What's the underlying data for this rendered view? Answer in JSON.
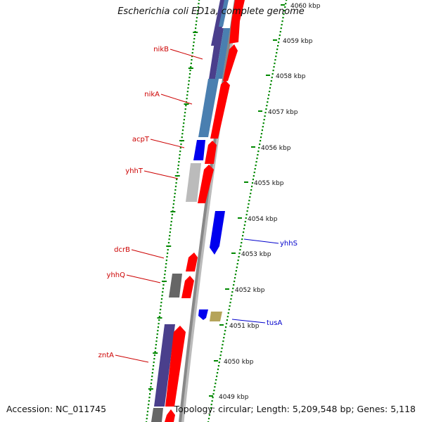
{
  "title": "Escherichia coli ED1a, complete genome",
  "accession": "Accession: NC_011745",
  "stats": "Topology: circular; Length: 5,209,548 bp; Genes: 5,118",
  "colors": {
    "forward_cds": "#ff0000",
    "reverse_cds": "#0000ee",
    "nik_operon": "#4a7fb0",
    "operon_dark": "#4a3f8c",
    "gray_feature": "#bbbbbb",
    "dark_gray_feature": "#666666",
    "khaki_feature": "#b5a45a",
    "backbone": "#888888",
    "tick_dots": "#008800",
    "label_forward": "#cc0000",
    "label_reverse": "#0000cc"
  },
  "ticks": [
    {
      "label": "4060 kbp"
    },
    {
      "label": "4059 kbp"
    },
    {
      "label": "4058 kbp"
    },
    {
      "label": "4057 kbp"
    },
    {
      "label": "4056 kbp"
    },
    {
      "label": "4055 kbp"
    },
    {
      "label": "4054 kbp"
    },
    {
      "label": "4053 kbp"
    },
    {
      "label": "4052 kbp"
    },
    {
      "label": "4051 kbp"
    },
    {
      "label": "4050 kbp"
    },
    {
      "label": "4049 kbp"
    }
  ],
  "genes": [
    {
      "name": "nikB"
    },
    {
      "name": "nikA"
    },
    {
      "name": "acpT"
    },
    {
      "name": "yhhT"
    },
    {
      "name": "yhhS"
    },
    {
      "name": "dcrB"
    },
    {
      "name": "yhhQ"
    },
    {
      "name": "tusA"
    },
    {
      "name": "zntA"
    }
  ]
}
